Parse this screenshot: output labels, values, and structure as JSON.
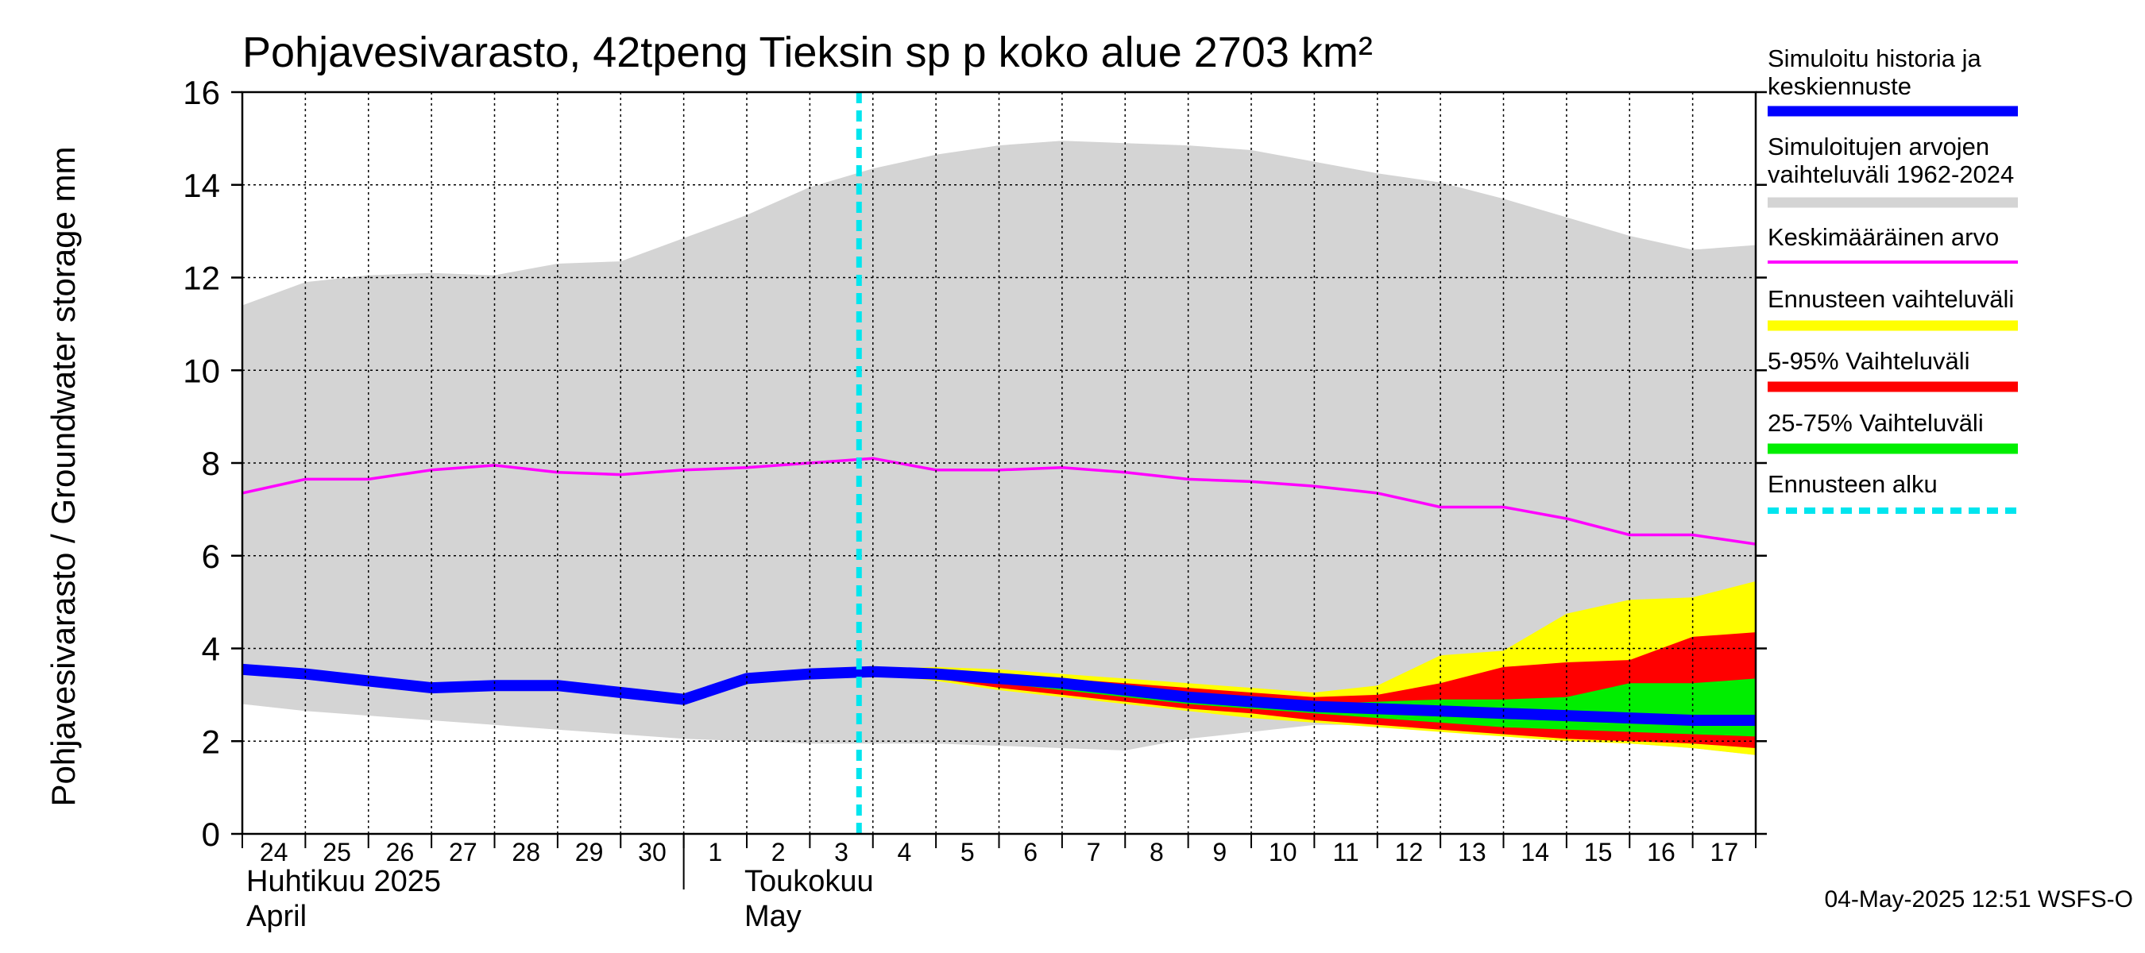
{
  "chart_data": {
    "type": "area",
    "title": "Pohjavesivarasto, 42tpeng Tieksin sp p koko alue 2703 km²",
    "ylabel": "Pohjavesivarasto / Groundwater storage   mm",
    "ylim": [
      0,
      16
    ],
    "yticks": [
      0,
      2,
      4,
      6,
      8,
      10,
      12,
      14,
      16
    ],
    "grid": true,
    "legend_position": "right",
    "x_day_labels": [
      "24",
      "25",
      "26",
      "27",
      "28",
      "29",
      "30",
      "1",
      "2",
      "3",
      "4",
      "5",
      "6",
      "7",
      "8",
      "9",
      "10",
      "11",
      "12",
      "13",
      "14",
      "15",
      "16",
      "17"
    ],
    "x_months": [
      {
        "line1": "Huhtikuu  2025",
        "line2": "April"
      },
      {
        "line1": "Toukokuu",
        "line2": "May"
      }
    ],
    "x_dates": [
      "2025-04-24",
      "2025-04-25",
      "2025-04-26",
      "2025-04-27",
      "2025-04-28",
      "2025-04-29",
      "2025-04-30",
      "2025-05-01",
      "2025-05-02",
      "2025-05-03",
      "2025-05-04",
      "2025-05-05",
      "2025-05-06",
      "2025-05-07",
      "2025-05-08",
      "2025-05-09",
      "2025-05-10",
      "2025-05-11",
      "2025-05-12",
      "2025-05-13",
      "2025-05-14",
      "2025-05-15",
      "2025-05-16",
      "2025-05-17",
      "2025-05-18"
    ],
    "forecast_start": "2025-05-04",
    "series": [
      {
        "name": "Simuloitujen arvojen vaihteluväli 1962-2024",
        "kind": "band",
        "x": [
          "2025-04-24",
          "2025-04-25",
          "2025-04-26",
          "2025-04-27",
          "2025-04-28",
          "2025-04-29",
          "2025-04-30",
          "2025-05-01",
          "2025-05-02",
          "2025-05-03",
          "2025-05-04",
          "2025-05-05",
          "2025-05-06",
          "2025-05-07",
          "2025-05-08",
          "2025-05-09",
          "2025-05-10",
          "2025-05-11",
          "2025-05-12",
          "2025-05-13",
          "2025-05-14",
          "2025-05-15",
          "2025-05-16",
          "2025-05-17",
          "2025-05-18"
        ],
        "lower": [
          2.8,
          2.65,
          2.55,
          2.45,
          2.35,
          2.25,
          2.15,
          2.05,
          2.0,
          1.95,
          1.95,
          1.95,
          1.9,
          1.85,
          1.8,
          2.05,
          2.2,
          2.35,
          2.35,
          2.3,
          2.2,
          2.05,
          1.95,
          1.85,
          1.7
        ],
        "upper": [
          11.4,
          11.9,
          12.05,
          12.1,
          12.05,
          12.3,
          12.35,
          12.85,
          13.35,
          13.95,
          14.35,
          14.65,
          14.85,
          14.95,
          14.9,
          14.85,
          14.75,
          14.5,
          14.25,
          14.05,
          13.7,
          13.3,
          12.9,
          12.6,
          12.7
        ],
        "color": "#d4d4d4"
      },
      {
        "name": "Ennusteen vaihteluväli",
        "kind": "band",
        "x": [
          "2025-05-04",
          "2025-05-05",
          "2025-05-06",
          "2025-05-07",
          "2025-05-08",
          "2025-05-09",
          "2025-05-10",
          "2025-05-11",
          "2025-05-12",
          "2025-05-13",
          "2025-05-14",
          "2025-05-15",
          "2025-05-16",
          "2025-05-17",
          "2025-05-18"
        ],
        "lower": [
          3.45,
          3.3,
          3.1,
          2.95,
          2.8,
          2.65,
          2.5,
          2.4,
          2.3,
          2.2,
          2.1,
          2.0,
          1.95,
          1.85,
          1.7
        ],
        "upper": [
          3.55,
          3.6,
          3.55,
          3.45,
          3.35,
          3.25,
          3.15,
          3.05,
          3.2,
          3.85,
          3.95,
          4.75,
          5.05,
          5.1,
          5.45
        ],
        "color": "#ffff00"
      },
      {
        "name": "5-95% Vaihteluväli",
        "kind": "band",
        "x": [
          "2025-05-04",
          "2025-05-05",
          "2025-05-06",
          "2025-05-07",
          "2025-05-08",
          "2025-05-09",
          "2025-05-10",
          "2025-05-11",
          "2025-05-12",
          "2025-05-13",
          "2025-05-14",
          "2025-05-15",
          "2025-05-16",
          "2025-05-17",
          "2025-05-18"
        ],
        "lower": [
          3.45,
          3.35,
          3.15,
          3.0,
          2.85,
          2.7,
          2.6,
          2.45,
          2.35,
          2.25,
          2.15,
          2.05,
          2.0,
          1.95,
          1.85
        ],
        "upper": [
          3.5,
          3.55,
          3.45,
          3.35,
          3.25,
          3.15,
          3.05,
          2.95,
          3.0,
          3.25,
          3.6,
          3.7,
          3.75,
          4.25,
          4.35
        ],
        "color": "#ff0000"
      },
      {
        "name": "25-75% Vaihteluväli",
        "kind": "band",
        "x": [
          "2025-05-04",
          "2025-05-05",
          "2025-05-06",
          "2025-05-07",
          "2025-05-08",
          "2025-05-09",
          "2025-05-10",
          "2025-05-11",
          "2025-05-12",
          "2025-05-13",
          "2025-05-14",
          "2025-05-15",
          "2025-05-16",
          "2025-05-17",
          "2025-05-18"
        ],
        "lower": [
          3.45,
          3.4,
          3.25,
          3.1,
          2.95,
          2.8,
          2.7,
          2.6,
          2.5,
          2.4,
          2.3,
          2.25,
          2.2,
          2.15,
          2.1
        ],
        "upper": [
          3.48,
          3.45,
          3.35,
          3.2,
          3.05,
          2.95,
          2.85,
          2.8,
          2.85,
          2.9,
          2.9,
          2.95,
          3.25,
          3.25,
          3.35
        ],
        "color": "#00ee00"
      },
      {
        "name": "Keskimääräinen arvo",
        "kind": "line",
        "x": [
          "2025-04-24",
          "2025-04-25",
          "2025-04-26",
          "2025-04-27",
          "2025-04-28",
          "2025-04-29",
          "2025-04-30",
          "2025-05-01",
          "2025-05-02",
          "2025-05-03",
          "2025-05-04",
          "2025-05-05",
          "2025-05-06",
          "2025-05-07",
          "2025-05-08",
          "2025-05-09",
          "2025-05-10",
          "2025-05-11",
          "2025-05-12",
          "2025-05-13",
          "2025-05-14",
          "2025-05-15",
          "2025-05-16",
          "2025-05-17",
          "2025-05-18"
        ],
        "values": [
          7.35,
          7.65,
          7.65,
          7.85,
          7.95,
          7.8,
          7.75,
          7.85,
          7.9,
          8.0,
          8.1,
          7.85,
          7.85,
          7.9,
          7.8,
          7.65,
          7.6,
          7.5,
          7.35,
          7.05,
          7.05,
          6.8,
          6.45,
          6.45,
          6.25
        ],
        "color": "#ff00ff"
      },
      {
        "name": "Simuloitu historia ja keskiennuste",
        "kind": "line",
        "x": [
          "2025-04-24",
          "2025-04-25",
          "2025-04-26",
          "2025-04-27",
          "2025-04-28",
          "2025-04-29",
          "2025-04-30",
          "2025-05-01",
          "2025-05-02",
          "2025-05-03",
          "2025-05-04",
          "2025-05-05",
          "2025-05-06",
          "2025-05-07",
          "2025-05-08",
          "2025-05-09",
          "2025-05-10",
          "2025-05-11",
          "2025-05-12",
          "2025-05-13",
          "2025-05-14",
          "2025-05-15",
          "2025-05-16",
          "2025-05-17",
          "2025-05-18"
        ],
        "values": [
          3.55,
          3.45,
          3.3,
          3.15,
          3.2,
          3.2,
          3.05,
          2.9,
          3.35,
          3.45,
          3.5,
          3.45,
          3.35,
          3.25,
          3.1,
          2.95,
          2.85,
          2.75,
          2.7,
          2.65,
          2.6,
          2.55,
          2.5,
          2.45,
          2.45
        ],
        "color": "#0000ff"
      }
    ],
    "legend": [
      {
        "label": "Simuloitu historia ja keskiennuste",
        "color": "#0000ff",
        "style": "thick"
      },
      {
        "label": "Simuloitujen arvojen vaihteluväli 1962-2024",
        "color": "#d4d4d4",
        "style": "thick"
      },
      {
        "label": "Keskimääräinen arvo",
        "color": "#ff00ff",
        "style": "thin"
      },
      {
        "label": "Ennusteen vaihteluväli",
        "color": "#ffff00",
        "style": "thick"
      },
      {
        "label": "5-95% Vaihteluväli",
        "color": "#ff0000",
        "style": "thick"
      },
      {
        "label": "25-75% Vaihteluväli",
        "color": "#00ee00",
        "style": "thick"
      },
      {
        "label": "Ennusteen alku",
        "color": "#00e5ee",
        "style": "dashed"
      }
    ],
    "footer": "04-May-2025 12:51 WSFS-O"
  }
}
